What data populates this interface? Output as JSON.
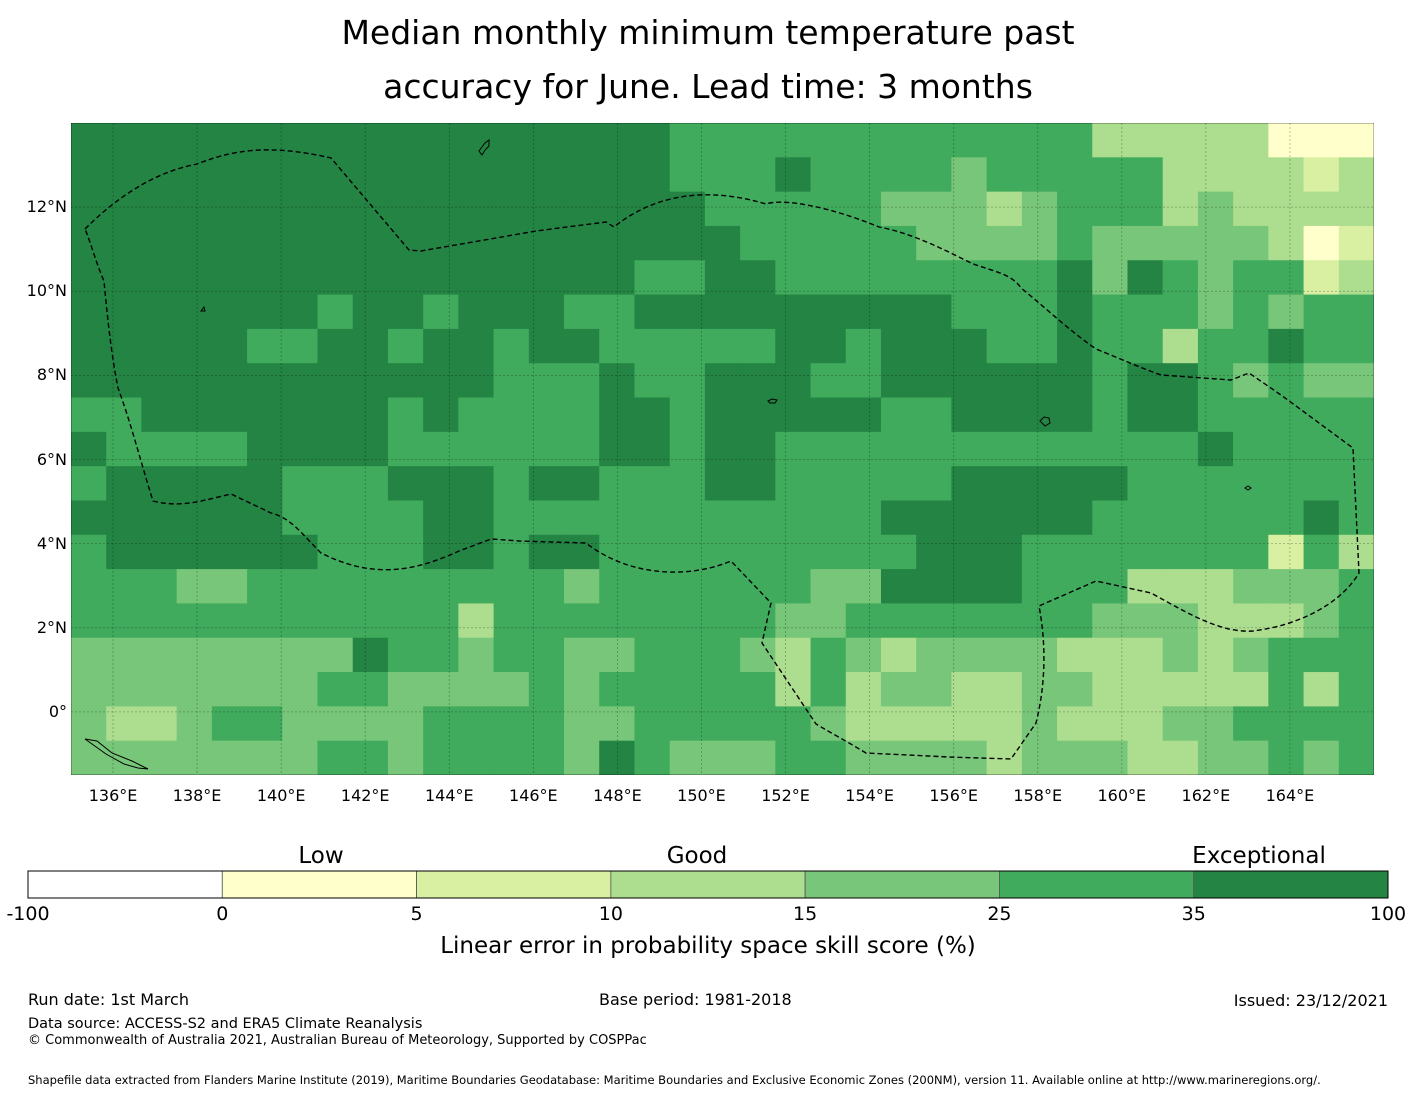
{
  "title": {
    "line1": "Median monthly minimum temperature past",
    "line2": "accuracy for June. Lead time: 3 months"
  },
  "map": {
    "lon_range": [
      135.0,
      166.0
    ],
    "lat_range": [
      -1.5,
      14.0
    ],
    "lat_ticks": [
      {
        "value": 12,
        "label": "12°N"
      },
      {
        "value": 10,
        "label": "10°N"
      },
      {
        "value": 8,
        "label": "8°N"
      },
      {
        "value": 6,
        "label": "6°N"
      },
      {
        "value": 4,
        "label": "4°N"
      },
      {
        "value": 2,
        "label": "2°N"
      },
      {
        "value": 0,
        "label": "0°"
      }
    ],
    "lon_ticks": [
      {
        "value": 136,
        "label": "136°E"
      },
      {
        "value": 138,
        "label": "138°E"
      },
      {
        "value": 140,
        "label": "140°E"
      },
      {
        "value": 142,
        "label": "142°E"
      },
      {
        "value": 144,
        "label": "144°E"
      },
      {
        "value": 146,
        "label": "146°E"
      },
      {
        "value": 148,
        "label": "148°E"
      },
      {
        "value": 150,
        "label": "150°E"
      },
      {
        "value": 152,
        "label": "152°E"
      },
      {
        "value": 154,
        "label": "154°E"
      },
      {
        "value": 156,
        "label": "156°E"
      },
      {
        "value": 158,
        "label": "158°E"
      },
      {
        "value": 160,
        "label": "160°E"
      },
      {
        "value": 162,
        "label": "162°E"
      },
      {
        "value": 164,
        "label": "164°E"
      }
    ],
    "eez_boundary_color": "#000000",
    "skill_grid_note": "Gridded LEPS skill score categories (0=below 0, 1=0-5, 2=5-10, 3=10-15, 4=15-25, 5=25-35, 6=35-100)",
    "grid": {
      "cols": 37,
      "rows": 19,
      "cell_deg": 0.833,
      "cells": [
        "6666666666666666655555555555533333111",
        "6666666666666666655565555455555333323",
        "6666666666666666665555544434555343333",
        "6666666666666666666555554444544444312",
        "6666666666666666556655555555646545523",
        "6666666566566655666666666555655545455",
        "6666655665665665555566566655655355655",
        "6666666666665556556665566666656654544",
        "5566666665655556656666655666656655555",
        "6555566665555556656655555555555565555",
        "5666665556665665556655555666665555555",
        "6666665555665555555555566666655555565",
        "5666666555665665555555556665555555253",
        "5554455555555545555554466665553334445",
        "5555555555535555555544555555544433345",
        "4444444465545544555435434444333434555",
        "4444444554444545555535344334433333535",
        "4334554444555544555554333334333445555",
        "4444444554555546544455444434443344545"
      ]
    }
  },
  "colorbar": {
    "categories": [
      {
        "label": "Low"
      },
      {
        "label": "Good"
      },
      {
        "label": "Exceptional"
      }
    ],
    "ticks": [
      "-100",
      "0",
      "5",
      "10",
      "15",
      "25",
      "35",
      "100"
    ],
    "colors": [
      "#ffffff",
      "#ffffcc",
      "#d9f0a3",
      "#addd8e",
      "#78c679",
      "#41ab5d",
      "#238443"
    ],
    "label": "Linear error in probability space skill score (%)"
  },
  "footer": {
    "run_date": "Run date: 1st March",
    "base_period": "Base period: 1981-2018",
    "issued": "Issued: 23/12/2021",
    "data_source": "Data source: ACCESS-S2 and ERA5 Climate Reanalysis",
    "copyright": "© Commonwealth of Australia 2021, Australian Bureau of Meteorology, Supported by COSPPac",
    "shapefile": "Shapefile data extracted from Flanders Marine Institute (2019), Maritime Boundaries Geodatabase: Maritime Boundaries and Exclusive Economic Zones (200NM), version 11. Available online at http://www.marineregions.org/."
  }
}
